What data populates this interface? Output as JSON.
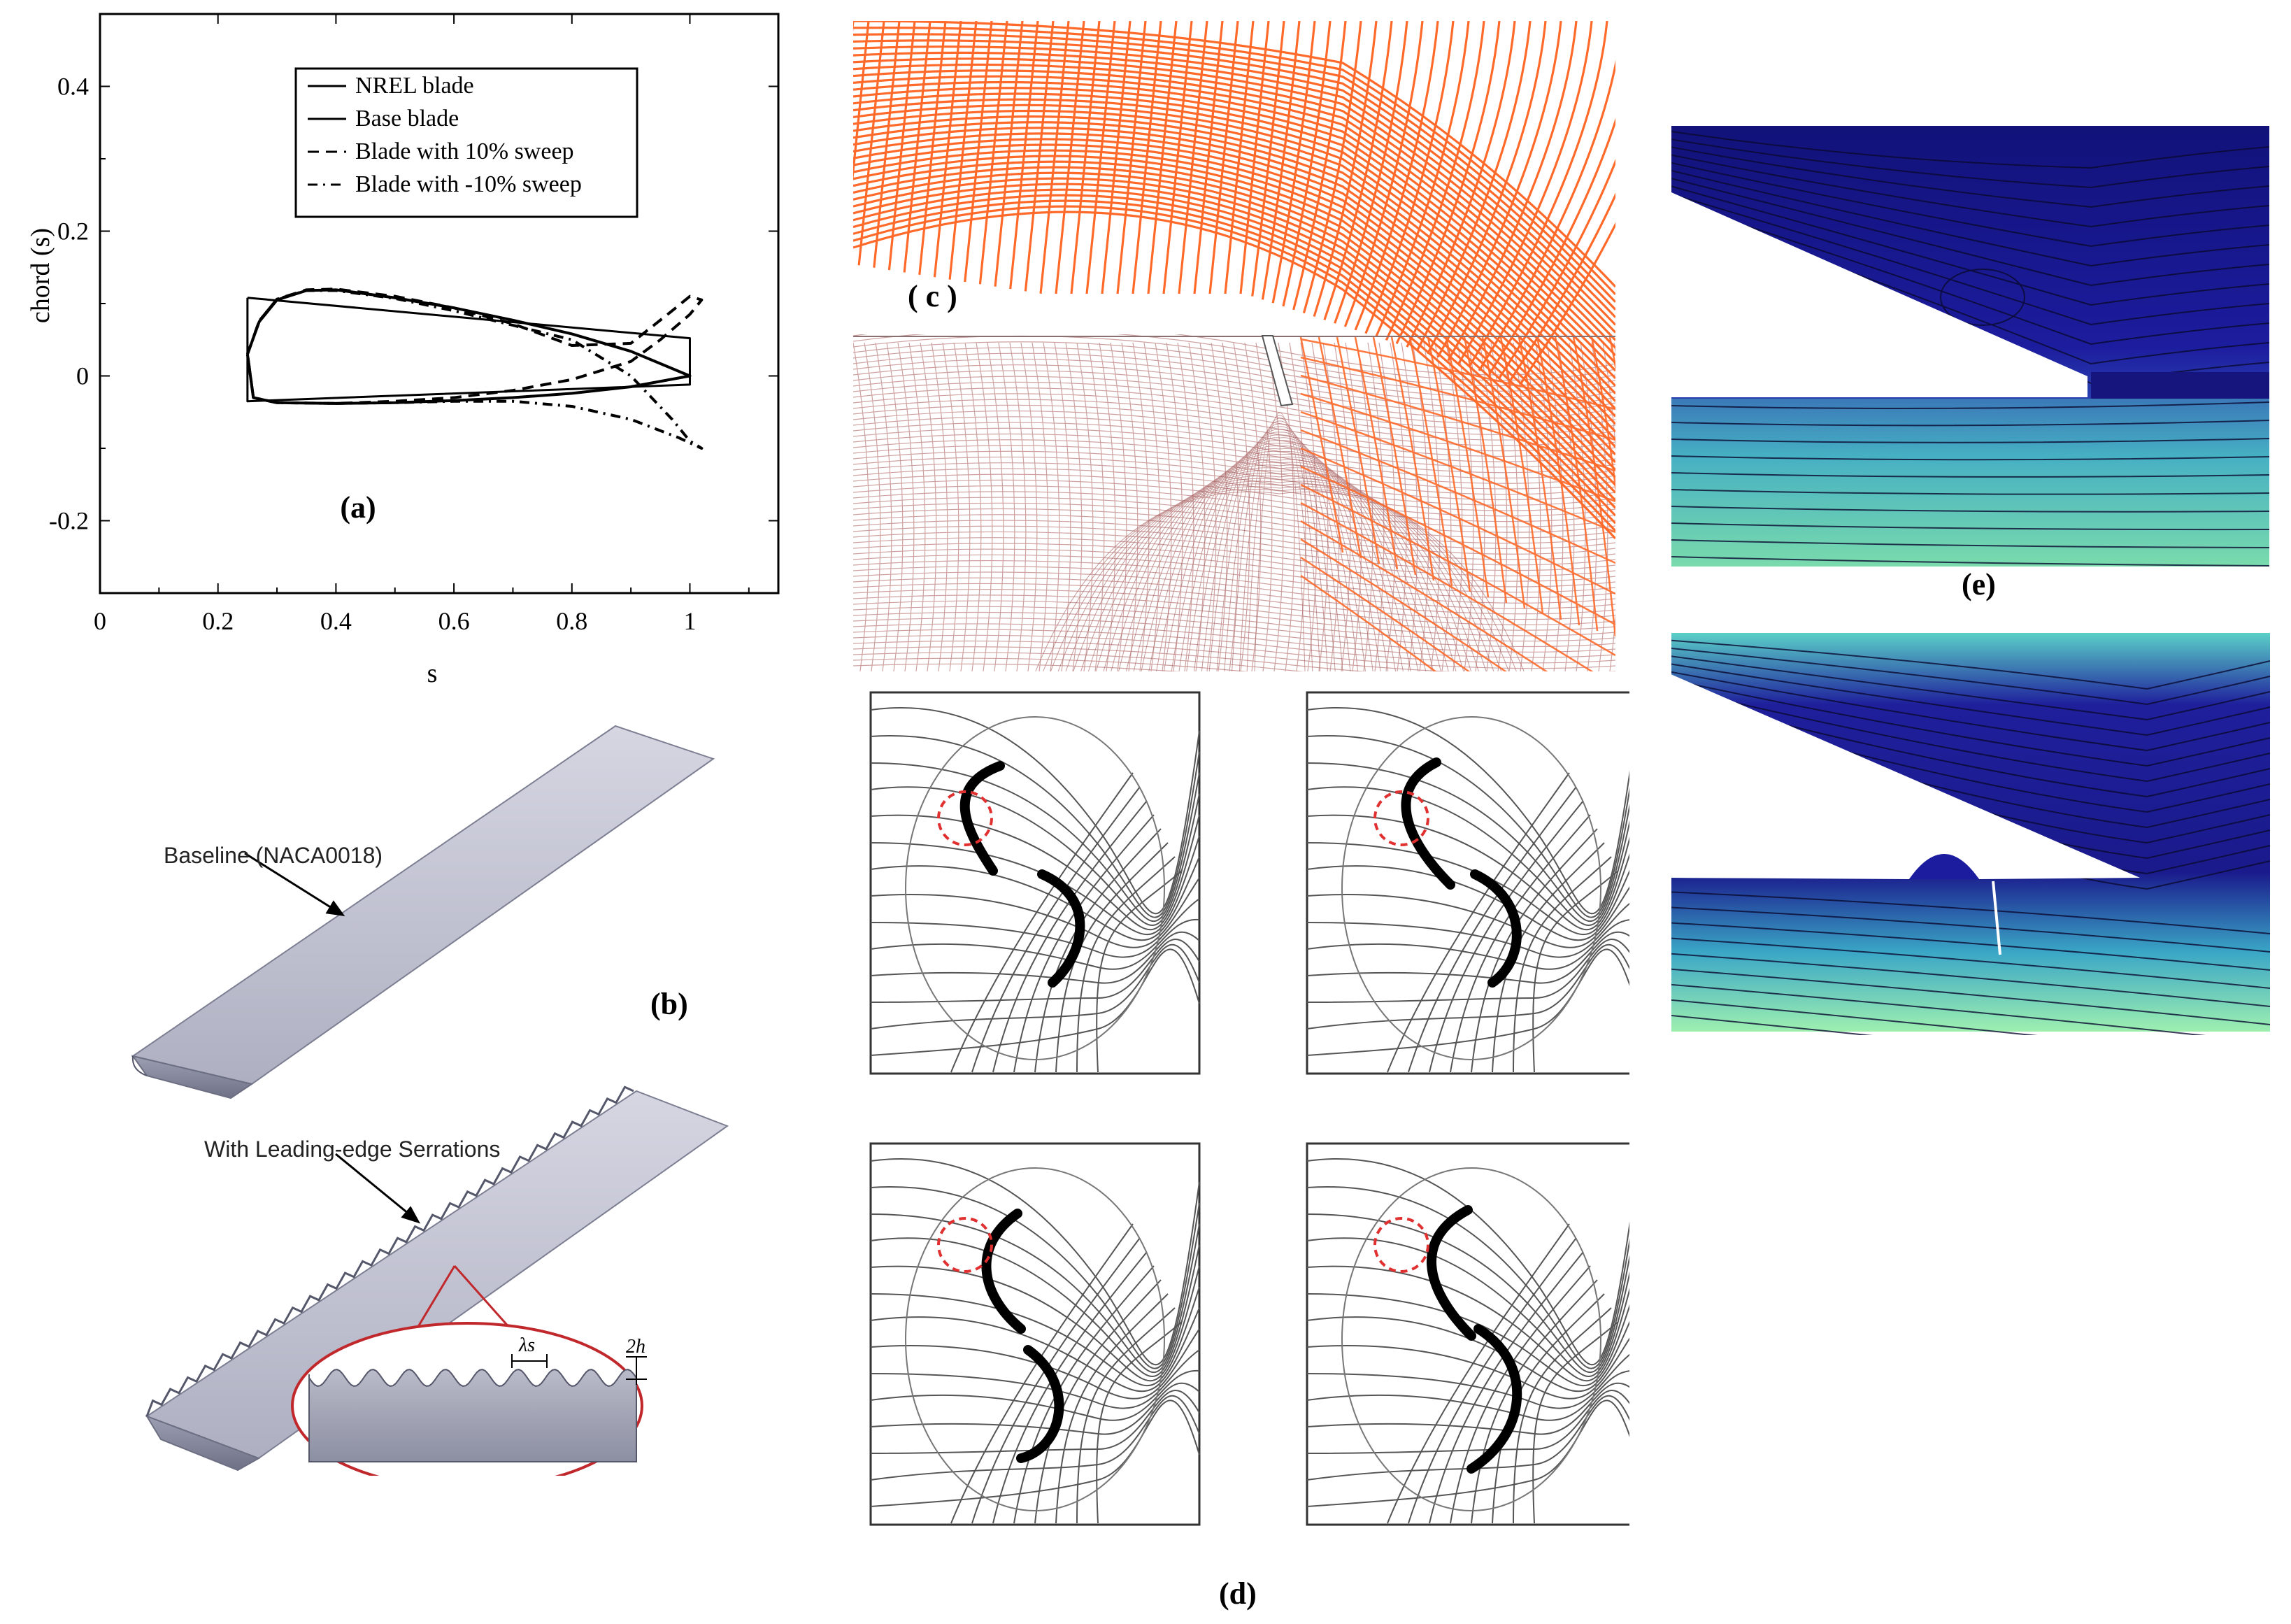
{
  "panels": {
    "a": {
      "label": "(a)"
    },
    "b": {
      "label": "(b)",
      "baseline_label": "Baseline (NACA0018)",
      "serrated_label": "With Leading-edge Serrations",
      "lambda_label": "λs",
      "height_label": "2h"
    },
    "c": {
      "label": "( c )"
    },
    "d": {
      "label": "(d)"
    },
    "e": {
      "label": "(e)"
    }
  },
  "chart_data": {
    "type": "line",
    "xlabel": "s",
    "ylabel": "chord (s)",
    "xlim": [
      0,
      1.15
    ],
    "ylim": [
      -0.3,
      0.5
    ],
    "xticks": [
      "0",
      "0.2",
      "0.4",
      "0.6",
      "0.8",
      "1"
    ],
    "yticks": [
      "-0.2",
      "0",
      "0.2",
      "0.4"
    ],
    "legend_position": "top-center",
    "series": [
      {
        "name": "NREL blade",
        "style": "solid",
        "x": [
          0.25,
          1.0,
          1.0,
          0.25,
          0.25
        ],
        "y": [
          0.108,
          0.052,
          -0.012,
          -0.035,
          0.108
        ]
      },
      {
        "name": "Base blade",
        "style": "solid",
        "x": [
          0.25,
          0.27,
          0.3,
          0.35,
          0.4,
          0.5,
          0.6,
          0.7,
          0.8,
          0.9,
          1.0,
          0.9,
          0.8,
          0.7,
          0.6,
          0.5,
          0.4,
          0.3,
          0.26,
          0.25
        ],
        "y": [
          0.03,
          0.075,
          0.105,
          0.118,
          0.119,
          0.108,
          0.094,
          0.077,
          0.058,
          0.034,
          0.0,
          -0.015,
          -0.024,
          -0.03,
          -0.034,
          -0.037,
          -0.038,
          -0.037,
          -0.03,
          0.03
        ]
      },
      {
        "name": "Blade with 10% sweep",
        "style": "dashed",
        "x": [
          0.25,
          0.27,
          0.3,
          0.35,
          0.4,
          0.5,
          0.6,
          0.7,
          0.8,
          0.9,
          0.97,
          1.0,
          1.02,
          1.0,
          0.95,
          0.9,
          0.8,
          0.7,
          0.6,
          0.5,
          0.4,
          0.3,
          0.26,
          0.25
        ],
        "y": [
          0.03,
          0.076,
          0.106,
          0.119,
          0.12,
          0.11,
          0.094,
          0.072,
          0.042,
          0.045,
          0.09,
          0.11,
          0.105,
          0.085,
          0.05,
          0.02,
          -0.005,
          -0.02,
          -0.03,
          -0.035,
          -0.038,
          -0.037,
          -0.03,
          0.03
        ]
      },
      {
        "name": "Blade with -10% sweep",
        "style": "dashdot",
        "x": [
          0.25,
          0.27,
          0.3,
          0.35,
          0.4,
          0.5,
          0.6,
          0.7,
          0.8,
          0.9,
          0.97,
          1.0,
          1.02,
          0.98,
          0.9,
          0.8,
          0.7,
          0.6,
          0.5,
          0.4,
          0.3,
          0.26,
          0.25
        ],
        "y": [
          0.03,
          0.076,
          0.106,
          0.118,
          0.118,
          0.107,
          0.09,
          0.07,
          0.05,
          0.0,
          -0.06,
          -0.09,
          -0.1,
          -0.085,
          -0.06,
          -0.042,
          -0.035,
          -0.035,
          -0.037,
          -0.038,
          -0.037,
          -0.03,
          0.03
        ]
      }
    ]
  }
}
